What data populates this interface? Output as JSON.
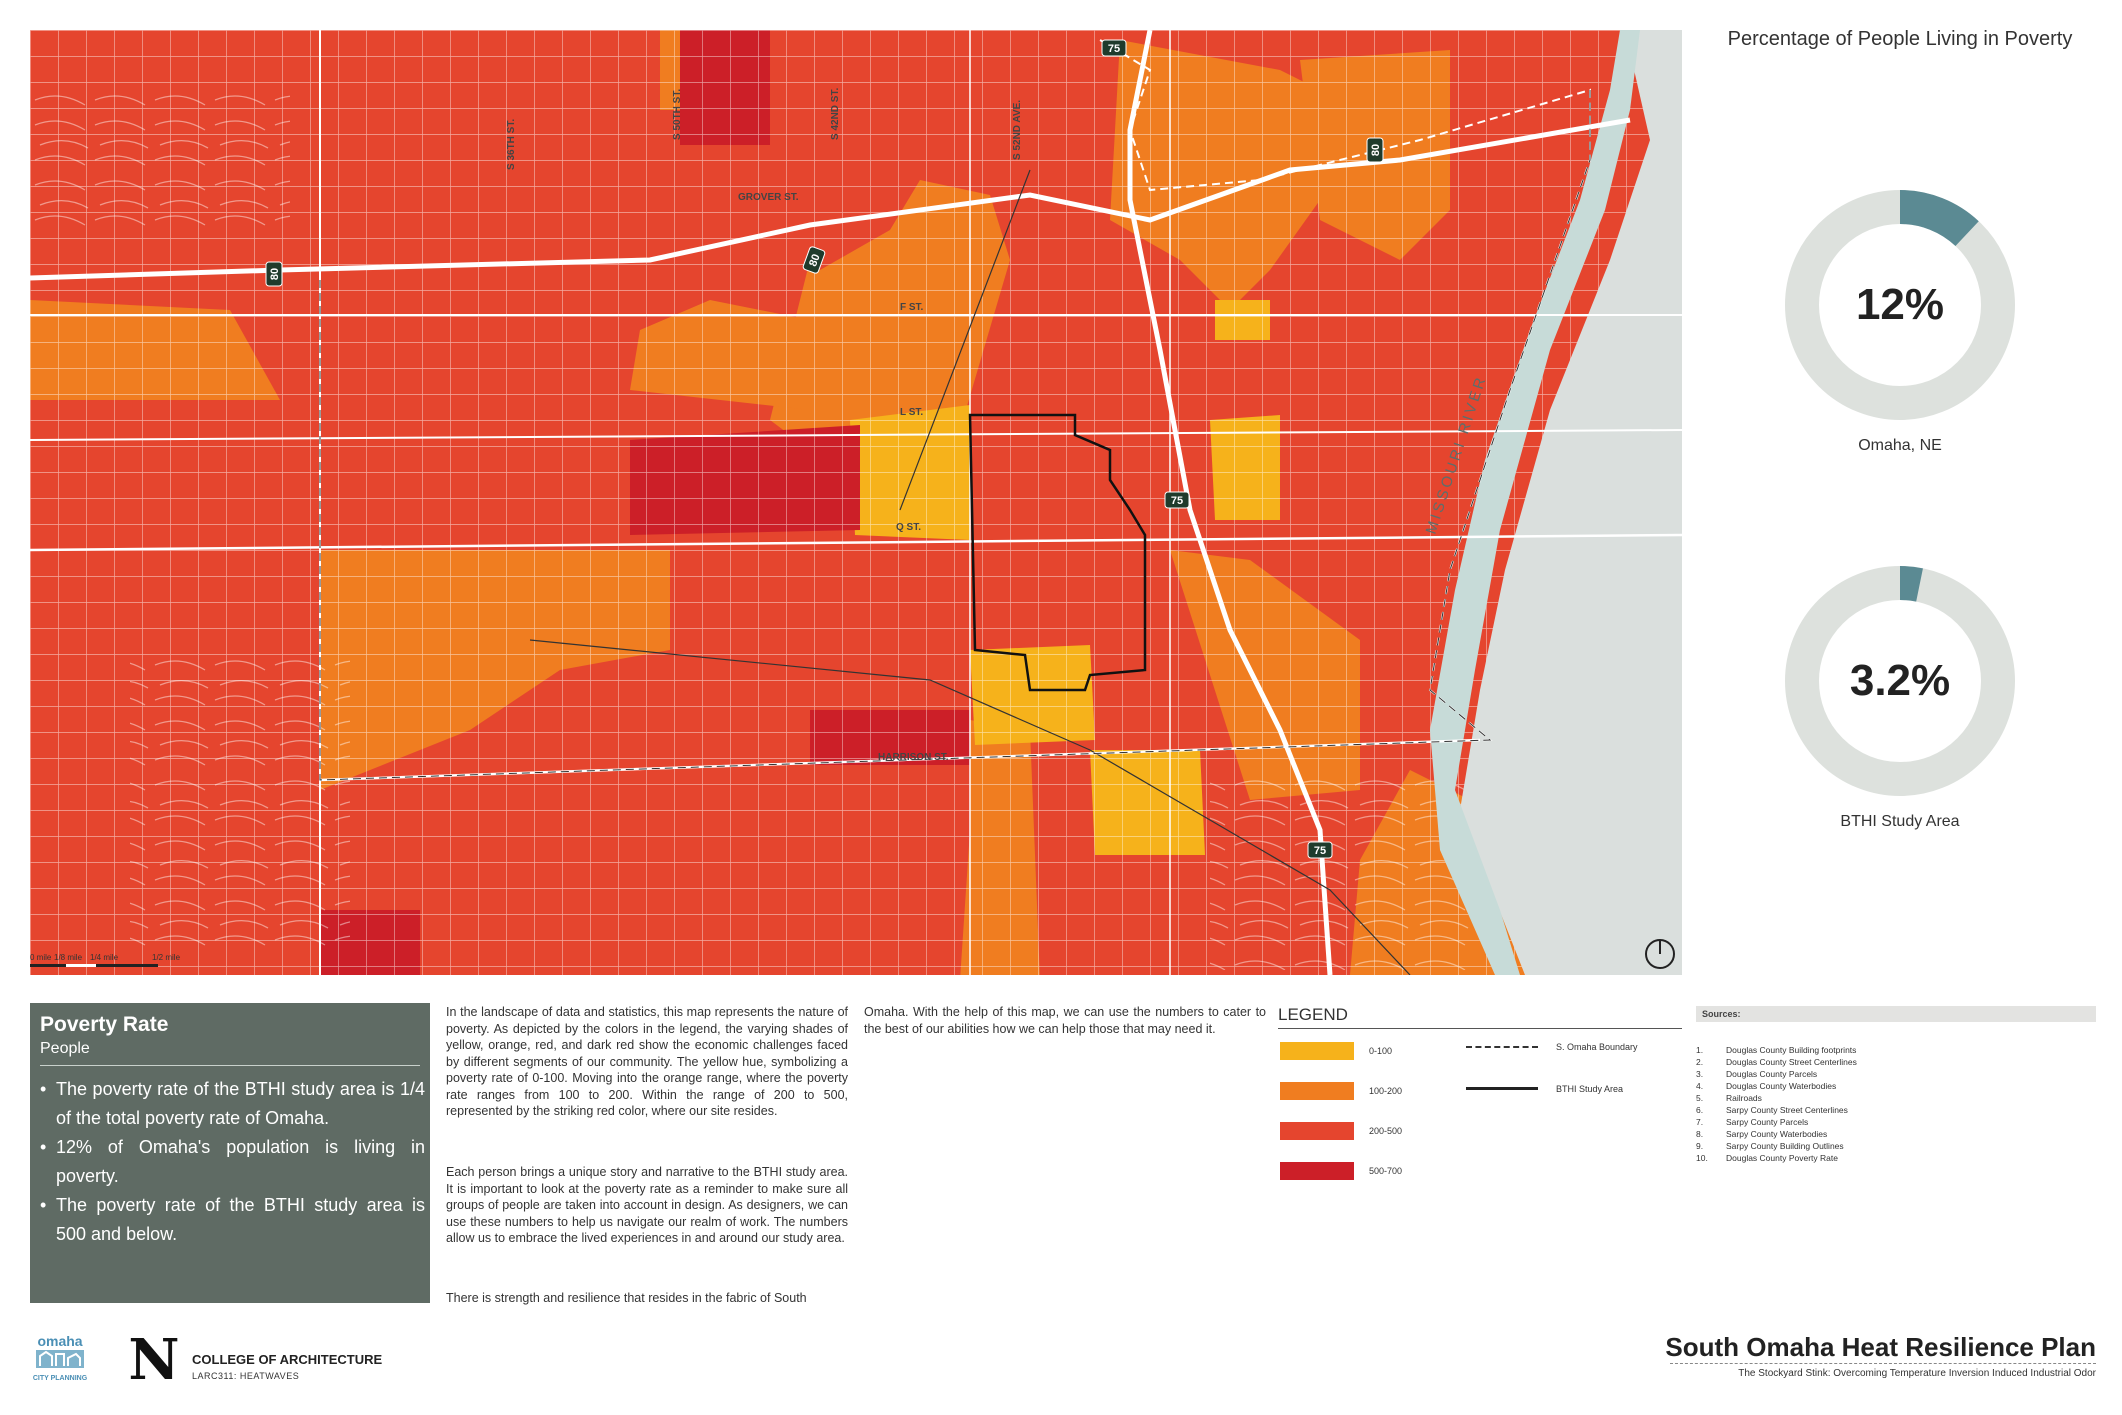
{
  "map": {
    "street_labels": [
      "S 36TH ST.",
      "S 50TH ST.",
      "S 42ND ST.",
      "S 52ND AVE.",
      "GROVER ST.",
      "F ST.",
      "L ST.",
      "Q ST.",
      "HARRISON ST."
    ],
    "river_label": "MISSOURI RIVER",
    "highway_shields": [
      "75",
      "80",
      "80",
      "80",
      "75",
      "75"
    ],
    "scale_labels": [
      "0 mile",
      "1/8 mile",
      "1/4 mile",
      "1/2 mile"
    ],
    "colors": {
      "yellow": "#f6b21b",
      "orange": "#f07d20",
      "red": "#e5452e",
      "dark_red": "#cc1f28",
      "water": "#c7dbd8",
      "land_nj": "#dadfdd"
    }
  },
  "donuts": {
    "title": "Percentage of People Living in Poverty",
    "items": [
      {
        "value": "12%",
        "fraction": 0.12,
        "label": "Omaha, NE"
      },
      {
        "value": "3.2%",
        "fraction": 0.032,
        "label": "BTHI Study Area"
      }
    ],
    "colors": {
      "track": "#dde1dd",
      "fill": "#5b8a93"
    }
  },
  "poverty_box": {
    "title": "Poverty Rate",
    "subtitle": "People",
    "bullets": [
      "The poverty rate of the BTHI study area is 1/4 of the total poverty rate of Omaha.",
      "12% of Omaha's population is living in poverty.",
      "The poverty rate of the BTHI study area is 500 and below."
    ]
  },
  "body_text": {
    "p1": "In the landscape of data and statistics, this map represents the nature of poverty. As depicted by the colors in the legend, the varying shades of yellow, orange, red, and dark red show the economic challenges faced by different segments of our community. The yellow hue, symbolizing a poverty rate of 0-100. Moving into the orange range, where the poverty rate ranges from 100 to 200. Within the range of 200 to 500, represented by the striking red color, where our site resides.",
    "p2": "Each person brings a unique story and narrative to the BTHI study area. It is important to look at the poverty rate as a reminder to make sure all groups of people are taken into account in design. As designers, we can use these numbers to help us navigate our realm of work. The numbers allow us to embrace the lived experiences in and around our study area.",
    "p3": "There is strength and resilience that resides in the fabric of South",
    "p4": "Omaha. With the help of this map, we can use the numbers to cater to the best of our abilities how we can help those that may need it."
  },
  "legend": {
    "title": "LEGEND",
    "ranges": [
      {
        "label": "0-100",
        "color": "#f6b21b"
      },
      {
        "label": "100-200",
        "color": "#f07d20"
      },
      {
        "label": "200-500",
        "color": "#e5452e"
      },
      {
        "label": "500-700",
        "color": "#cc1f28"
      }
    ],
    "lines": [
      {
        "label": "S. Omaha Boundary",
        "style": "dashed"
      },
      {
        "label": "BTHI Study Area",
        "style": "solid"
      }
    ]
  },
  "sources": {
    "title": "Sources:",
    "items": [
      {
        "n": "1.",
        "text": "Douglas County Building footprints"
      },
      {
        "n": "2.",
        "text": "Douglas County Street Centerlines"
      },
      {
        "n": "3.",
        "text": "Douglas County Parcels"
      },
      {
        "n": "4.",
        "text": "Douglas County Waterbodies"
      },
      {
        "n": "5.",
        "text": "Railroads"
      },
      {
        "n": "6.",
        "text": "Sarpy County Street Centerlines"
      },
      {
        "n": "7.",
        "text": "Sarpy County Parcels"
      },
      {
        "n": "8.",
        "text": "Sarpy County Waterbodies"
      },
      {
        "n": "9.",
        "text": "Sarpy County Building Outlines"
      },
      {
        "n": "10.",
        "text": "Douglas County Poverty Rate"
      }
    ]
  },
  "logos": {
    "omaha": [
      "omaha",
      "CITY PLANNING"
    ],
    "unl_mark": "N",
    "college": "COLLEGE OF ARCHITECTURE",
    "course": "LARC311: HEATWAVES"
  },
  "footer": {
    "title": "South Omaha Heat Resilience Plan",
    "subtitle": "The Stockyard Stink: Overcoming Temperature Inversion Induced Industrial Odor"
  }
}
